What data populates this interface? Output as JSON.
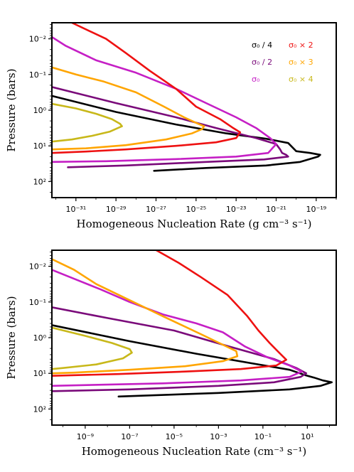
{
  "colors": {
    "s4": "#000000",
    "s2": "#7a0a7a",
    "s1": "#c51fc5",
    "x2": "#ee1111",
    "x3": "#ffa500",
    "x4": "#c8b81a"
  },
  "legend": [
    {
      "key": "s4",
      "label": "σ₀ / 4"
    },
    {
      "key": "x2",
      "label": "σ₀ × 2"
    },
    {
      "key": "s2",
      "label": "σ₀ / 2"
    },
    {
      "key": "x3",
      "label": "σ₀ × 3"
    },
    {
      "key": "s1",
      "label": "σ₀"
    },
    {
      "key": "x4",
      "label": "σ₀ × 4"
    }
  ],
  "chart_data": [
    {
      "type": "line",
      "xlabel": "Homogeneous Nucleation Rate (g cm⁻³ s⁻¹)",
      "ylabel": "Pressure (bars)",
      "xscale": "log",
      "yscale": "log",
      "yinverted": true,
      "xlim": [
        -32.2,
        -18.0
      ],
      "ylim": [
        -2.45,
        2.45
      ],
      "xticks": [
        {
          "v": -31,
          "label": "10⁻³¹"
        },
        {
          "v": -29,
          "label": "10⁻²⁹"
        },
        {
          "v": -27,
          "label": "10⁻²⁷"
        },
        {
          "v": -25,
          "label": "10⁻²⁵"
        },
        {
          "v": -23,
          "label": "10⁻²³"
        },
        {
          "v": -21,
          "label": "10⁻²¹"
        },
        {
          "v": -19,
          "label": "10⁻¹⁹"
        }
      ],
      "yticks": [
        {
          "v": -2,
          "label": "10⁻²"
        },
        {
          "v": -1,
          "label": "10⁻¹"
        },
        {
          "v": 0,
          "label": "10⁰"
        },
        {
          "v": 1,
          "label": "10¹"
        },
        {
          "v": 2,
          "label": "10²"
        }
      ],
      "legend_position": "top-right",
      "series": [
        {
          "key": "s4",
          "name": "σ₀ / 4",
          "points": [
            [
              -32.2,
              -0.4
            ],
            [
              -29,
              0.05
            ],
            [
              -26,
              0.4
            ],
            [
              -23.5,
              0.65
            ],
            [
              -21.5,
              0.8
            ],
            [
              -20.4,
              0.92
            ],
            [
              -20.0,
              1.15
            ],
            [
              -19.3,
              1.2
            ],
            [
              -18.8,
              1.25
            ],
            [
              -18.9,
              1.3
            ],
            [
              -19.8,
              1.45
            ],
            [
              -21.5,
              1.55
            ],
            [
              -24.5,
              1.62
            ],
            [
              -27.1,
              1.7
            ]
          ]
        },
        {
          "key": "s2",
          "name": "σ₀ / 2",
          "points": [
            [
              -32.2,
              -0.65
            ],
            [
              -29,
              -0.2
            ],
            [
              -26,
              0.2
            ],
            [
              -24,
              0.5
            ],
            [
              -22,
              0.78
            ],
            [
              -21.0,
              0.95
            ],
            [
              -20.8,
              1.1
            ],
            [
              -20.7,
              1.2
            ],
            [
              -20.5,
              1.25
            ],
            [
              -20.4,
              1.3
            ],
            [
              -21.6,
              1.38
            ],
            [
              -24.5,
              1.45
            ],
            [
              -28.5,
              1.55
            ],
            [
              -31.4,
              1.6
            ]
          ]
        },
        {
          "key": "s1",
          "name": "σ₀",
          "points": [
            [
              -32.2,
              -2.05
            ],
            [
              -31.5,
              -1.8
            ],
            [
              -30,
              -1.4
            ],
            [
              -28,
              -1.05
            ],
            [
              -26,
              -0.6
            ],
            [
              -24.5,
              -0.2
            ],
            [
              -23,
              0.2
            ],
            [
              -22,
              0.5
            ],
            [
              -21.3,
              0.78
            ],
            [
              -21.0,
              0.95
            ],
            [
              -21.4,
              1.2
            ],
            [
              -23,
              1.3
            ],
            [
              -26,
              1.37
            ],
            [
              -29.5,
              1.43
            ],
            [
              -32.2,
              1.45
            ]
          ]
        },
        {
          "key": "x2",
          "name": "σ₀ × 2",
          "points": [
            [
              -31.2,
              -2.45
            ],
            [
              -29.5,
              -2.0
            ],
            [
              -28.5,
              -1.6
            ],
            [
              -27.3,
              -1.1
            ],
            [
              -26,
              -0.6
            ],
            [
              -25,
              -0.1
            ],
            [
              -23.8,
              0.25
            ],
            [
              -23.2,
              0.48
            ],
            [
              -22.8,
              0.62
            ],
            [
              -23.0,
              0.78
            ],
            [
              -24,
              0.9
            ],
            [
              -26,
              1.0
            ],
            [
              -28.5,
              1.1
            ],
            [
              -30.5,
              1.16
            ],
            [
              -32.2,
              1.2
            ]
          ]
        },
        {
          "key": "x3",
          "name": "σ₀ × 3",
          "points": [
            [
              -32.2,
              -1.2
            ],
            [
              -31,
              -1.0
            ],
            [
              -29.6,
              -0.8
            ],
            [
              -28,
              -0.5
            ],
            [
              -26.6,
              -0.1
            ],
            [
              -25.6,
              0.2
            ],
            [
              -24.9,
              0.38
            ],
            [
              -24.6,
              0.45
            ],
            [
              -24.7,
              0.53
            ],
            [
              -25.2,
              0.65
            ],
            [
              -26.5,
              0.82
            ],
            [
              -28.5,
              0.98
            ],
            [
              -30.5,
              1.07
            ],
            [
              -32.2,
              1.1
            ]
          ]
        },
        {
          "key": "x4",
          "name": "σ₀ × 4",
          "points": [
            [
              -32.2,
              -0.18
            ],
            [
              -31,
              -0.05
            ],
            [
              -30,
              0.1
            ],
            [
              -29.2,
              0.25
            ],
            [
              -28.8,
              0.38
            ],
            [
              -28.7,
              0.45
            ],
            [
              -29.3,
              0.6
            ],
            [
              -30.2,
              0.72
            ],
            [
              -31.2,
              0.82
            ],
            [
              -32.2,
              0.88
            ]
          ]
        }
      ]
    },
    {
      "type": "line",
      "xlabel": "Homogeneous Nucleation Rate (cm⁻³ s⁻¹)",
      "ylabel": "Pressure (bars)",
      "xscale": "log",
      "yscale": "log",
      "yinverted": true,
      "xlim": [
        -10.5,
        2.3
      ],
      "ylim": [
        -2.45,
        2.45
      ],
      "xticks": [
        {
          "v": -9,
          "label": "10⁻⁹"
        },
        {
          "v": -7,
          "label": "10⁻⁷"
        },
        {
          "v": -5,
          "label": "10⁻⁵"
        },
        {
          "v": -3,
          "label": "10⁻³"
        },
        {
          "v": -1,
          "label": "10⁻¹"
        },
        {
          "v": 1,
          "label": "10¹"
        }
      ],
      "yticks": [
        {
          "v": -2,
          "label": "10⁻²"
        },
        {
          "v": -1,
          "label": "10⁻¹"
        },
        {
          "v": 0,
          "label": "10⁰"
        },
        {
          "v": 1,
          "label": "10¹"
        },
        {
          "v": 2,
          "label": "10²"
        }
      ],
      "series": [
        {
          "key": "s4",
          "name": "σ₀ / 4",
          "points": [
            [
              -10.5,
              -0.35
            ],
            [
              -7,
              0.1
            ],
            [
              -4,
              0.45
            ],
            [
              -1.5,
              0.72
            ],
            [
              0.2,
              0.9
            ],
            [
              0.9,
              1.05
            ],
            [
              1.3,
              1.12
            ],
            [
              1.7,
              1.2
            ],
            [
              2.1,
              1.25
            ],
            [
              1.6,
              1.35
            ],
            [
              0.2,
              1.45
            ],
            [
              -3,
              1.55
            ],
            [
              -7.5,
              1.65
            ]
          ]
        },
        {
          "key": "s2",
          "name": "σ₀ / 2",
          "points": [
            [
              -10.5,
              -0.85
            ],
            [
              -8,
              -0.55
            ],
            [
              -5,
              -0.2
            ],
            [
              -2.5,
              0.25
            ],
            [
              -0.5,
              0.6
            ],
            [
              0.5,
              0.85
            ],
            [
              0.8,
              0.95
            ],
            [
              0.95,
              1.0
            ],
            [
              0.7,
              1.1
            ],
            [
              -0.5,
              1.25
            ],
            [
              -3,
              1.35
            ],
            [
              -7,
              1.45
            ],
            [
              -10.5,
              1.5
            ]
          ]
        },
        {
          "key": "s1",
          "name": "σ₀",
          "points": [
            [
              -10.5,
              -1.9
            ],
            [
              -9.5,
              -1.65
            ],
            [
              -8.3,
              -1.35
            ],
            [
              -7,
              -1.0
            ],
            [
              -5.5,
              -0.65
            ],
            [
              -4,
              -0.4
            ],
            [
              -2.8,
              -0.15
            ],
            [
              -1.8,
              0.25
            ],
            [
              -0.8,
              0.55
            ],
            [
              0.2,
              0.78
            ],
            [
              0.75,
              0.95
            ],
            [
              0.2,
              1.1
            ],
            [
              -2,
              1.2
            ],
            [
              -5.5,
              1.28
            ],
            [
              -10.5,
              1.35
            ]
          ]
        },
        {
          "key": "x2",
          "name": "σ₀ × 2",
          "points": [
            [
              -5.8,
              -2.45
            ],
            [
              -4.8,
              -2.1
            ],
            [
              -3.8,
              -1.7
            ],
            [
              -2.6,
              -1.2
            ],
            [
              -1.7,
              -0.6
            ],
            [
              -1.2,
              -0.2
            ],
            [
              -0.7,
              0.15
            ],
            [
              -0.3,
              0.4
            ],
            [
              0.05,
              0.62
            ],
            [
              -0.4,
              0.78
            ],
            [
              -2,
              0.88
            ],
            [
              -4.5,
              0.95
            ],
            [
              -7.5,
              1.02
            ],
            [
              -10.5,
              1.07
            ]
          ]
        },
        {
          "key": "x3",
          "name": "σ₀ × 3",
          "points": [
            [
              -10.5,
              -2.2
            ],
            [
              -9.5,
              -1.9
            ],
            [
              -8.5,
              -1.5
            ],
            [
              -7,
              -1.05
            ],
            [
              -5.5,
              -0.6
            ],
            [
              -3.8,
              -0.1
            ],
            [
              -2.8,
              0.2
            ],
            [
              -2.2,
              0.38
            ],
            [
              -2.15,
              0.52
            ],
            [
              -2.8,
              0.66
            ],
            [
              -4.5,
              0.8
            ],
            [
              -7,
              0.9
            ],
            [
              -9.5,
              0.98
            ],
            [
              -10.5,
              1.0
            ]
          ]
        },
        {
          "key": "x4",
          "name": "σ₀ × 4",
          "points": [
            [
              -10.5,
              -0.28
            ],
            [
              -9,
              -0.05
            ],
            [
              -7.8,
              0.15
            ],
            [
              -7.0,
              0.32
            ],
            [
              -6.9,
              0.42
            ],
            [
              -7.3,
              0.58
            ],
            [
              -8.5,
              0.75
            ],
            [
              -10,
              0.85
            ],
            [
              -10.5,
              0.88
            ]
          ]
        }
      ]
    }
  ]
}
